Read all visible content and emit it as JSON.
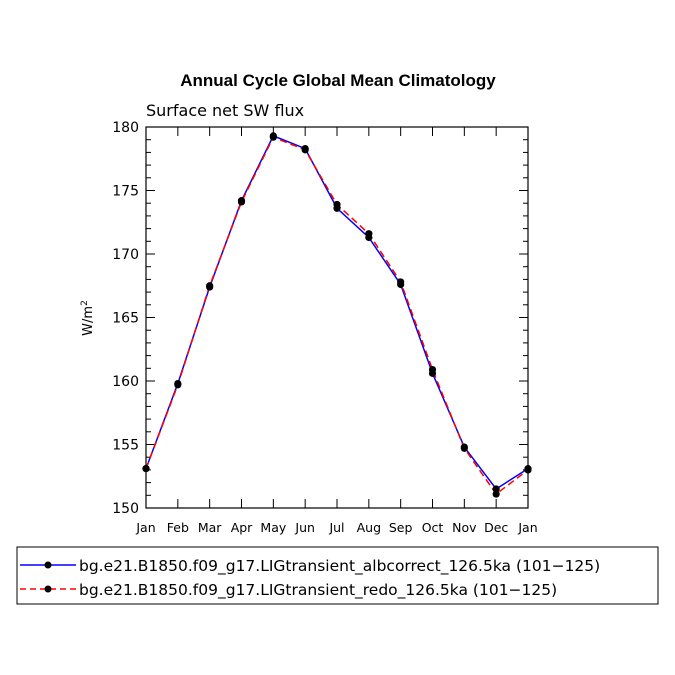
{
  "chart_data": {
    "type": "line",
    "title": "Annual Cycle Global Mean Climatology",
    "subtitle": "Surface net SW flux",
    "ylabel": "W/m",
    "ylabel_superscript": "2",
    "xlabel": "",
    "categories": [
      "Jan",
      "Feb",
      "Mar",
      "Apr",
      "May",
      "Jun",
      "Jul",
      "Aug",
      "Sep",
      "Oct",
      "Nov",
      "Dec",
      "Jan"
    ],
    "ylim": [
      150,
      180
    ],
    "yticks": [
      150,
      155,
      160,
      165,
      170,
      175,
      180
    ],
    "series": [
      {
        "name": "bg.e21.B1850.f09_g17.LIGtransient_albcorrect_126.5ka (101−125)",
        "color": "#0000ff",
        "style": "solid",
        "values": [
          153.1,
          159.8,
          167.4,
          174.2,
          179.3,
          178.3,
          173.6,
          171.3,
          167.6,
          160.6,
          154.8,
          151.5,
          153.1
        ]
      },
      {
        "name": "bg.e21.B1850.f09_g17.LIGtransient_redo_126.5ka (101−125)",
        "color": "#ff0000",
        "style": "dashed",
        "values": [
          153.1,
          159.7,
          167.5,
          174.1,
          179.2,
          178.2,
          173.9,
          171.6,
          167.8,
          160.9,
          154.7,
          151.1,
          153.0
        ]
      }
    ],
    "marker_color": "#000000",
    "legend_position": "bottom"
  }
}
